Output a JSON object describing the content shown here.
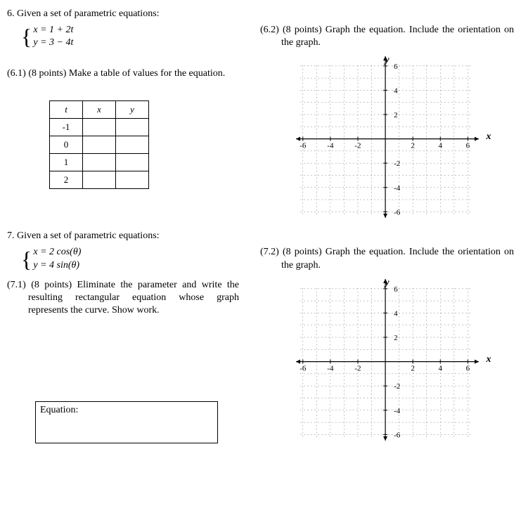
{
  "problem6": {
    "number": "6.",
    "intro": "Given a set of parametric equations:",
    "eq1": "x = 1 + 2t",
    "eq2": "y = 3 − 4t",
    "p1": {
      "label": "(6.1)",
      "points": "(8 points)",
      "text": "Make a table of values for the equation."
    },
    "p2": {
      "label": "(6.2)",
      "points": "(8 points)",
      "text": "Graph the equation. Include the orientation on the graph."
    },
    "table": {
      "headers": [
        "t",
        "x",
        "y"
      ],
      "rows": [
        "-1",
        "0",
        "1",
        "2"
      ]
    },
    "graph": {
      "xlim": [
        -6.5,
        6.8
      ],
      "ylim": [
        -6.5,
        6.8
      ],
      "xticks": [
        -6,
        -4,
        -2,
        2,
        4,
        6
      ],
      "yticks": [
        -6,
        -4,
        -2,
        2,
        4,
        6
      ],
      "minor_step": 1,
      "axis_color": "#000000",
      "grid_color": "#888888",
      "background": "#ffffff",
      "xlabel": "x",
      "ylabel": "y",
      "tick_fontsize": 11
    }
  },
  "problem7": {
    "number": "7.",
    "intro": "Given a set of parametric equations:",
    "eq1": "x = 2 cos(θ)",
    "eq2": "y = 4 sin(θ)",
    "p1": {
      "label": "(7.1)",
      "points": "(8 points)",
      "text": "Eliminate the parameter and write the resulting rectangular equation whose graph represents the curve. Show work."
    },
    "p2": {
      "label": "(7.2)",
      "points": "(8 points)",
      "text": "Graph the equation. Include the orientation on the graph."
    },
    "answer_box_label": "Equation:",
    "graph": {
      "xlim": [
        -6.5,
        6.8
      ],
      "ylim": [
        -6.5,
        6.8
      ],
      "xticks": [
        -6,
        -4,
        -2,
        2,
        4,
        6
      ],
      "yticks": [
        -6,
        -4,
        -2,
        2,
        4,
        6
      ],
      "minor_step": 1,
      "axis_color": "#000000",
      "grid_color": "#888888",
      "background": "#ffffff",
      "xlabel": "x",
      "ylabel": "y",
      "tick_fontsize": 11
    }
  }
}
